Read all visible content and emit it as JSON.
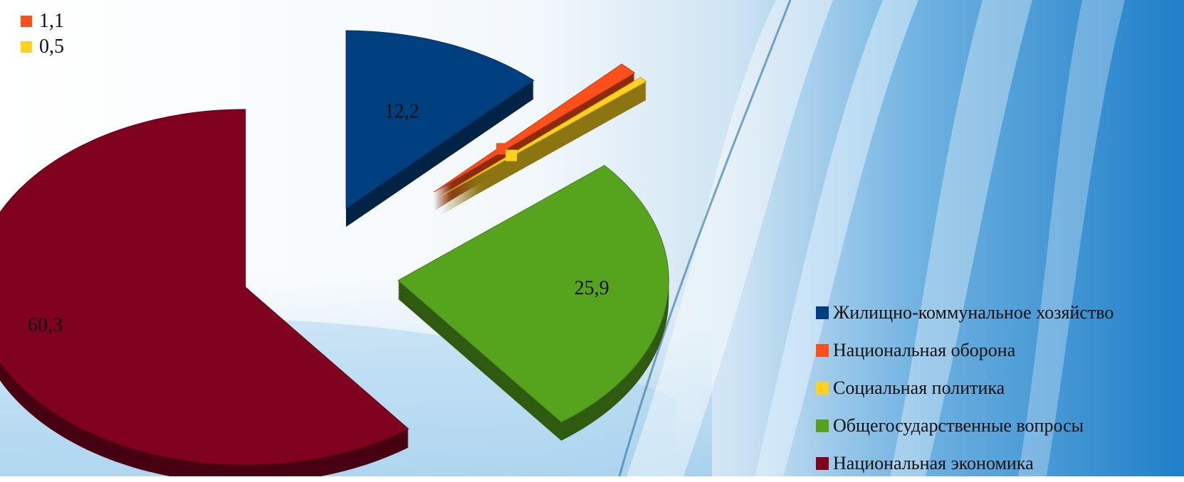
{
  "chart_data": {
    "type": "pie",
    "three_d": true,
    "exploded": true,
    "title": "",
    "slices": [
      {
        "name": "Жилищно-коммунальное хозяйство",
        "value": 12.2,
        "label": "12,2",
        "color": "#003f7f"
      },
      {
        "name": "Национальная оборона",
        "value": 1.1,
        "label": "1,1",
        "color": "#ff4f1a"
      },
      {
        "name": "Социальная политика",
        "value": 0.5,
        "label": "0,5",
        "color": "#ffd21f"
      },
      {
        "name": "Общегосударственные вопросы",
        "value": 25.9,
        "label": "25,9",
        "color": "#56a31d"
      },
      {
        "name": "Национальная экономика",
        "value": 60.3,
        "label": "60,3",
        "color": "#800020"
      }
    ],
    "legend_position": "bottom-right"
  },
  "legend": {
    "items": [
      {
        "label": "Жилищно-коммунальное хозяйство",
        "color": "#003f7f"
      },
      {
        "label": "Национальная оборона",
        "color": "#ff4f1a"
      },
      {
        "label": "Социальная политика",
        "color": "#ffd21f"
      },
      {
        "label": "Общегосударственные вопросы",
        "color": "#56a31d"
      },
      {
        "label": "Национальная экономика",
        "color": "#800020"
      }
    ]
  }
}
